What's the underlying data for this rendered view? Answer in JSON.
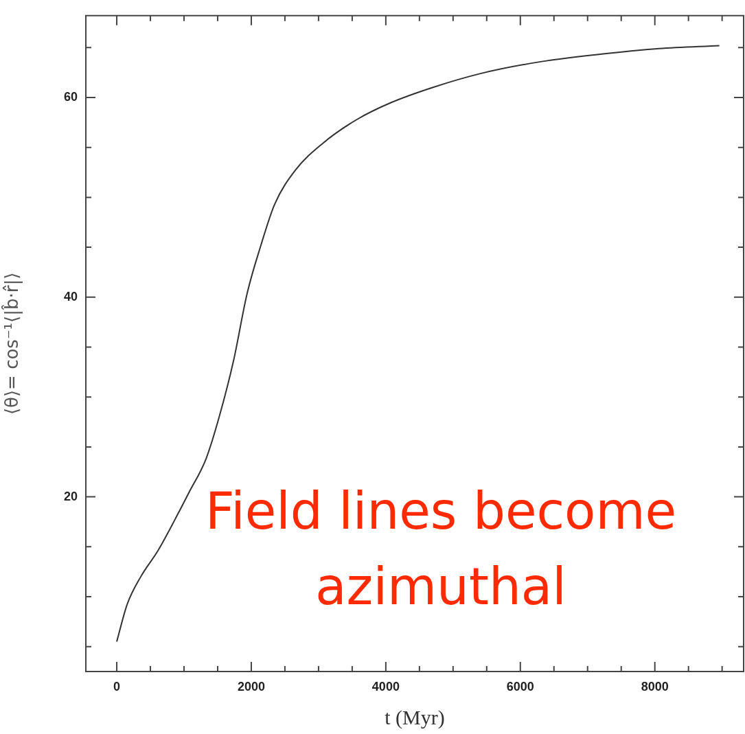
{
  "chart_data": {
    "type": "line",
    "xlabel": "t (Myr)",
    "ylabel": "⟨θ⟩= cos⁻¹⟨|b̂·r̂|⟩",
    "annotations": [
      "Field lines become\nazimuthal"
    ],
    "x": [
      0,
      153,
      357,
      612,
      918,
      1071,
      1327,
      1531,
      1735,
      1939,
      2143,
      2347,
      2653,
      3061,
      3571,
      4082,
      4694,
      5408,
      6224,
      7143,
      8061,
      8959
    ],
    "series": [
      {
        "color": "#333333",
        "values": [
          5.5,
          9.2,
          12.0,
          14.6,
          18.4,
          20.4,
          23.8,
          28.2,
          33.6,
          40.4,
          45.2,
          49.3,
          52.7,
          55.4,
          57.8,
          59.5,
          61.0,
          62.4,
          63.5,
          64.3,
          64.9,
          65.2
        ]
      }
    ],
    "xlim": [
      -460,
      9320
    ],
    "ylim": [
      2.5,
      68.2
    ],
    "xticks": [
      0,
      {
        "value": 500,
        "label": null
      },
      {
        "value": 1000,
        "label": null
      },
      {
        "value": 1500,
        "label": null
      },
      2000,
      {
        "value": 2500,
        "label": null
      },
      {
        "value": 3000,
        "label": null
      },
      {
        "value": 3500,
        "label": null
      },
      4000,
      {
        "value": 4500,
        "label": null
      },
      {
        "value": 5000,
        "label": null
      },
      {
        "value": 5500,
        "label": null
      },
      6000,
      {
        "value": 6500,
        "label": null
      },
      {
        "value": 7000,
        "label": null
      },
      {
        "value": 7500,
        "label": null
      },
      8000,
      {
        "value": 8500,
        "label": null
      },
      {
        "value": 9000,
        "label": null
      }
    ],
    "yticks": [
      {
        "value": 5,
        "label": null
      },
      {
        "value": 10,
        "label": null
      },
      {
        "value": 15,
        "label": null
      },
      20,
      {
        "value": 25,
        "label": null
      },
      {
        "value": 30,
        "label": null
      },
      {
        "value": 35,
        "label": null
      },
      40,
      {
        "value": 45,
        "label": null
      },
      {
        "value": 50,
        "label": null
      },
      {
        "value": 55,
        "label": null
      },
      60,
      {
        "value": 65,
        "label": null
      }
    ],
    "grid": false,
    "legend": false,
    "marker": "none",
    "line_style": "solid"
  }
}
